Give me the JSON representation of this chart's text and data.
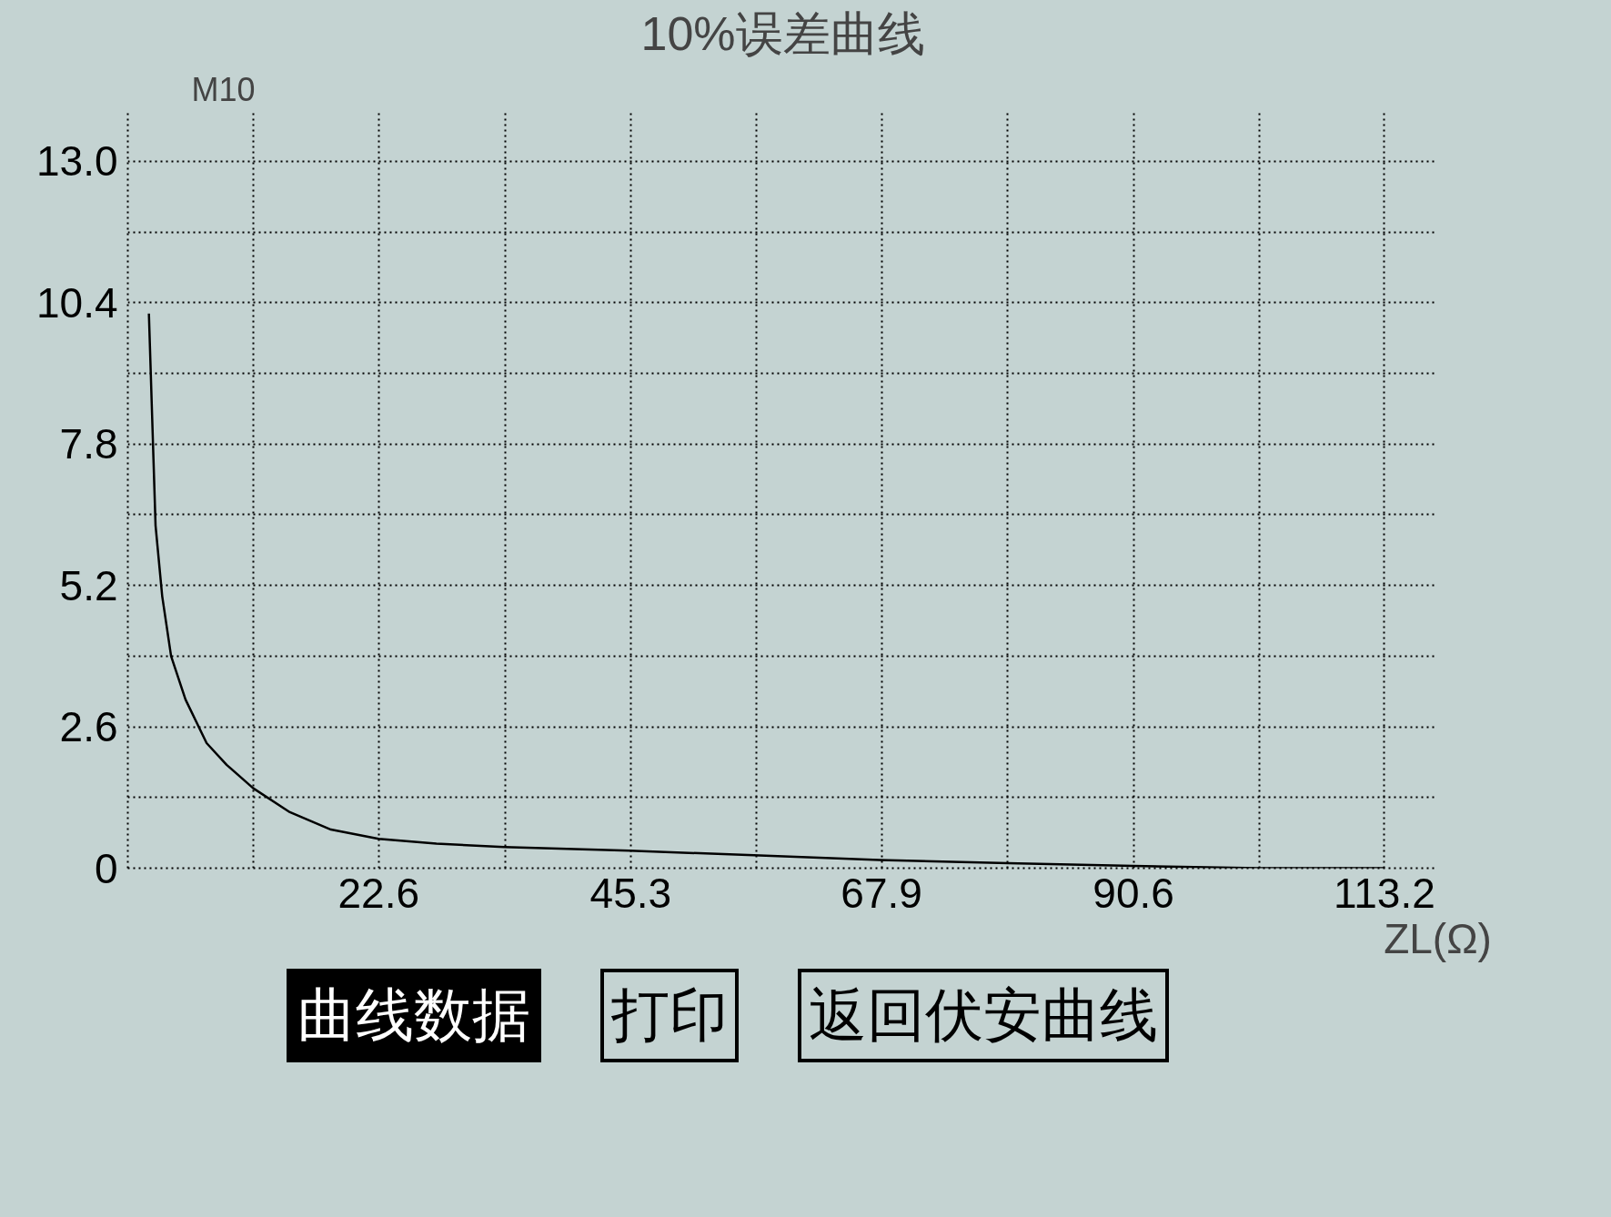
{
  "chart_data": {
    "type": "line",
    "title": "10%误差曲线",
    "xlabel": "ZL(Ω)",
    "ylabel": "M10",
    "x": [
      1.9,
      2.2,
      2.5,
      3.1,
      3.9,
      5.2,
      7.1,
      8.9,
      11.3,
      14.6,
      18.3,
      22.6,
      27.8,
      33.9,
      45.2,
      56.4,
      67.7,
      79.3,
      90.6,
      101.9,
      113.2
    ],
    "series": [
      {
        "color": "#000000",
        "values": [
          10.2,
          8.25,
          6.3,
          5.0,
          3.9,
          3.1,
          2.3,
          1.9,
          1.47,
          1.03,
          0.71,
          0.54,
          0.45,
          0.39,
          0.32,
          0.24,
          0.15,
          0.09,
          0.04,
          0.0,
          0.0
        ]
      }
    ],
    "xlim": [
      0,
      118
    ],
    "ylim": [
      0,
      13.9
    ],
    "xticks": [
      {
        "value": 11.3,
        "label": null
      },
      22.6,
      {
        "value": 34.0,
        "label": null
      },
      45.3,
      {
        "value": 56.6,
        "label": null
      },
      67.9,
      {
        "value": 79.2,
        "label": null
      },
      90.6,
      {
        "value": 101.9,
        "label": null
      },
      113.2
    ],
    "yticks": [
      0,
      {
        "value": 1.3,
        "label": null
      },
      2.6,
      {
        "value": 3.9,
        "label": null
      },
      5.2,
      {
        "value": 6.5,
        "label": null
      },
      7.8,
      {
        "value": 9.1,
        "label": null
      },
      10.4,
      {
        "value": 11.7,
        "label": null
      },
      {
        "value": 13.0,
        "label": "13.0"
      }
    ],
    "grid": true,
    "line_style": "solid",
    "marker": "none",
    "annotations": [
      "曲线数据",
      "打印",
      "返回伏安曲线"
    ]
  }
}
